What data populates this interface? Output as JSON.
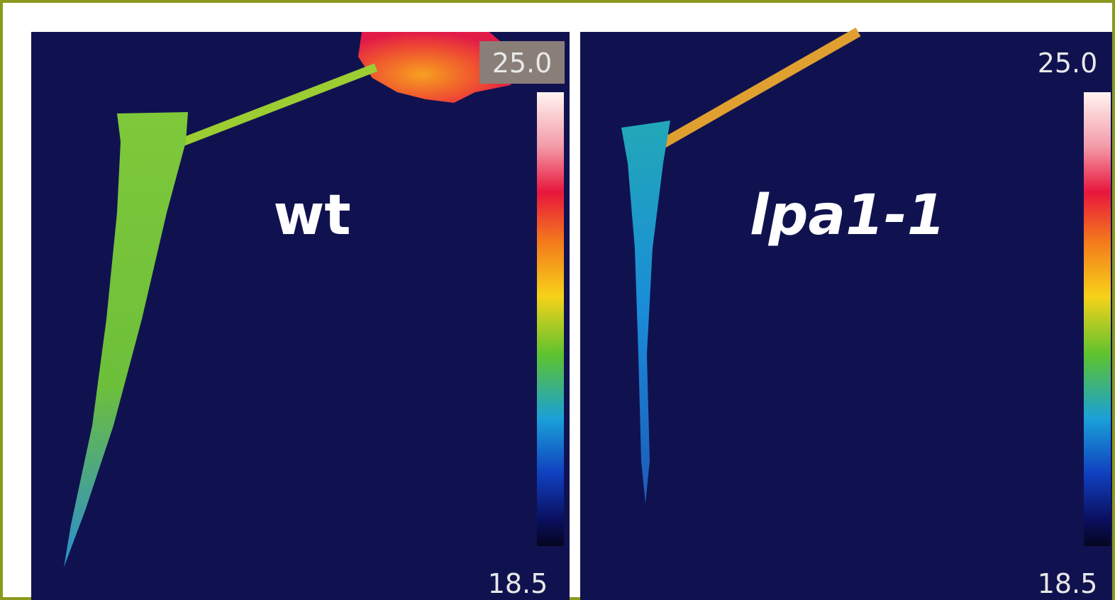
{
  "panels": [
    {
      "label": "wt",
      "scale_max": "25.0",
      "scale_min": "18.5"
    },
    {
      "label": "lpa1-1",
      "scale_max": "25.0",
      "scale_min": "18.5"
    }
  ]
}
